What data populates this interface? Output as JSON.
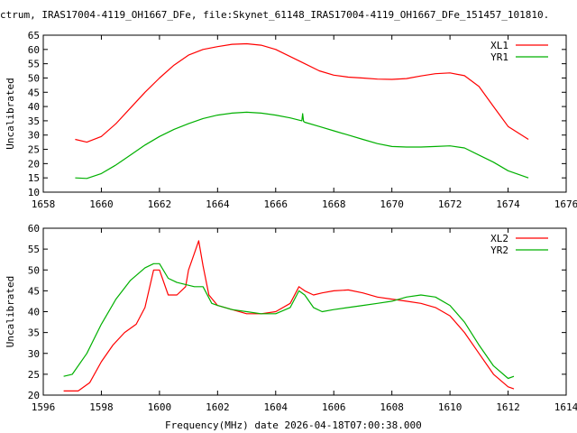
{
  "title": "ctrum, IRAS17004-4119_OH1667_DFe, file:Skynet_61148_IRAS17004-4119_OH1667_DFe_151457_101810.",
  "footer": "Frequency(MHz) date 2026-04-18T07:00:38.000",
  "colors": {
    "x": "#ff0000",
    "y": "#00b000",
    "axis": "#000000"
  },
  "chart_data": [
    {
      "type": "line",
      "name": "top",
      "ylabel": "Uncalibrated",
      "xlim": [
        1658,
        1676
      ],
      "ylim": [
        10,
        65
      ],
      "xticks": [
        1658,
        1660,
        1662,
        1664,
        1666,
        1668,
        1670,
        1672,
        1674,
        1676
      ],
      "yticks": [
        10,
        15,
        20,
        25,
        30,
        35,
        40,
        45,
        50,
        55,
        60,
        65
      ],
      "legend_position": "top-right",
      "series": [
        {
          "name": "XL1",
          "color": "#ff0000",
          "x": [
            1659.1,
            1659.5,
            1660.0,
            1660.5,
            1661.0,
            1661.5,
            1662.0,
            1662.5,
            1663.0,
            1663.5,
            1664.0,
            1664.5,
            1665.0,
            1665.5,
            1666.0,
            1666.5,
            1667.0,
            1667.5,
            1668.0,
            1668.5,
            1669.0,
            1669.5,
            1670.0,
            1670.5,
            1671.0,
            1671.5,
            1672.0,
            1672.5,
            1673.0,
            1673.5,
            1674.0,
            1674.7
          ],
          "y": [
            28.5,
            27.5,
            29.5,
            34,
            39.5,
            45,
            50,
            54.5,
            58,
            60,
            61,
            61.8,
            62,
            61.5,
            60,
            57.5,
            55,
            52.5,
            51,
            50.3,
            50,
            49.6,
            49.5,
            49.8,
            50.7,
            51.5,
            51.8,
            50.8,
            47,
            40,
            33,
            28.5
          ]
        },
        {
          "name": "YR1",
          "color": "#00b000",
          "x": [
            1659.1,
            1659.5,
            1660.0,
            1660.5,
            1661.0,
            1661.5,
            1662.0,
            1662.5,
            1663.0,
            1663.5,
            1664.0,
            1664.5,
            1665.0,
            1665.5,
            1666.0,
            1666.5,
            1666.9,
            1666.93,
            1666.96,
            1667.0,
            1667.5,
            1668.0,
            1668.5,
            1669.0,
            1669.5,
            1670.0,
            1670.5,
            1671.0,
            1671.5,
            1672.0,
            1672.5,
            1673.0,
            1673.5,
            1674.0,
            1674.7
          ],
          "y": [
            15,
            14.8,
            16.5,
            19.5,
            23,
            26.5,
            29.5,
            32,
            34,
            35.8,
            37,
            37.7,
            38,
            37.7,
            37,
            36,
            35,
            37.5,
            34.8,
            34.5,
            33,
            31.5,
            30,
            28.5,
            27,
            26,
            25.8,
            25.8,
            26,
            26.2,
            25.5,
            23,
            20.5,
            17.5,
            15
          ]
        }
      ]
    },
    {
      "type": "line",
      "name": "bottom",
      "ylabel": "Uncalibrated",
      "xlabel": "Frequency(MHz) date 2026-04-18T07:00:38.000",
      "xlim": [
        1596,
        1614
      ],
      "ylim": [
        20,
        60
      ],
      "xticks": [
        1596,
        1598,
        1600,
        1602,
        1604,
        1606,
        1608,
        1610,
        1612,
        1614
      ],
      "yticks": [
        20,
        25,
        30,
        35,
        40,
        45,
        50,
        55,
        60
      ],
      "legend_position": "top-right",
      "series": [
        {
          "name": "XL2",
          "color": "#ff0000",
          "x": [
            1596.7,
            1597.2,
            1597.6,
            1598.0,
            1598.4,
            1598.8,
            1599.2,
            1599.5,
            1599.8,
            1600.0,
            1600.3,
            1600.6,
            1600.9,
            1601.0,
            1601.2,
            1601.35,
            1601.5,
            1601.7,
            1602.0,
            1602.5,
            1603.0,
            1603.5,
            1604.0,
            1604.5,
            1604.8,
            1605.0,
            1605.3,
            1605.6,
            1606.0,
            1606.5,
            1607.0,
            1607.5,
            1608.0,
            1608.5,
            1609.0,
            1609.5,
            1610.0,
            1610.5,
            1611.0,
            1611.5,
            1612.0,
            1612.2
          ],
          "y": [
            21,
            21,
            23,
            28,
            32,
            35,
            37,
            41,
            50,
            50,
            44,
            44,
            46,
            50,
            54,
            57,
            51,
            44,
            41.5,
            40.5,
            39.5,
            39.5,
            40,
            42,
            46,
            45,
            44,
            44.5,
            45,
            45.2,
            44.5,
            43.5,
            43,
            42.5,
            42,
            41,
            39,
            35,
            30,
            25,
            22,
            21.5
          ]
        },
        {
          "name": "YR2",
          "color": "#00b000",
          "x": [
            1596.7,
            1597.0,
            1597.5,
            1598.0,
            1598.5,
            1599.0,
            1599.5,
            1599.8,
            1600.0,
            1600.3,
            1600.6,
            1600.9,
            1601.2,
            1601.5,
            1601.8,
            1602.0,
            1602.5,
            1603.0,
            1603.5,
            1604.0,
            1604.5,
            1604.8,
            1605.0,
            1605.3,
            1605.6,
            1606.0,
            1606.5,
            1607.0,
            1607.5,
            1608.0,
            1608.5,
            1609.0,
            1609.5,
            1610.0,
            1610.5,
            1611.0,
            1611.5,
            1612.0,
            1612.2
          ],
          "y": [
            24.5,
            25,
            30,
            37,
            43,
            47.5,
            50.5,
            51.5,
            51.5,
            48,
            47,
            46.5,
            46,
            46,
            42,
            41.5,
            40.5,
            40,
            39.5,
            39.5,
            41,
            45,
            44,
            41,
            40,
            40.5,
            41,
            41.5,
            42,
            42.5,
            43.5,
            44,
            43.5,
            41.5,
            37.5,
            32,
            27,
            24,
            24.5
          ]
        }
      ]
    }
  ]
}
